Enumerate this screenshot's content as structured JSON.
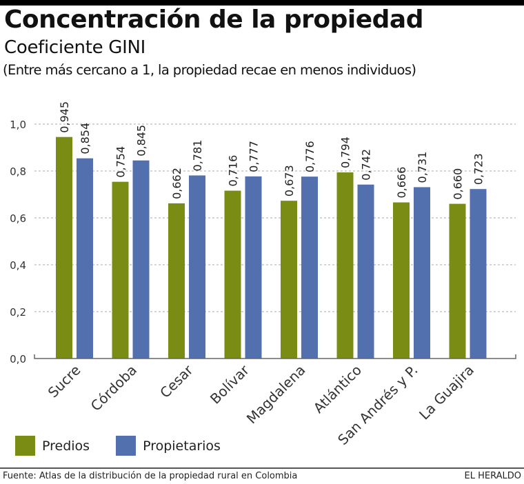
{
  "header": {
    "title": "Concentración de la propiedad",
    "subtitle": "Coeficiente GINI",
    "note": "(Entre más cercano a 1, la propiedad recae en menos individuos)"
  },
  "legend": [
    {
      "label": "Predios",
      "color": "#7a8c14"
    },
    {
      "label": "Propietarios",
      "color": "#5270ad"
    }
  ],
  "footer": {
    "source": "Fuente: Atlas de la distribución de la propiedad rural en Colombia",
    "brand": "EL HERALDO"
  },
  "chart_data": {
    "type": "bar",
    "title": "Concentración de la propiedad",
    "subtitle": "Coeficiente GINI",
    "xlabel": "",
    "ylabel": "",
    "ylim": [
      0,
      1.0
    ],
    "yticks": [
      0.0,
      0.2,
      0.4,
      0.6,
      0.8,
      1.0
    ],
    "ytick_labels": [
      "0,0",
      "0,2",
      "0,4",
      "0,6",
      "0,8",
      "1,0"
    ],
    "grid": true,
    "legend_position": "bottom-left",
    "categories": [
      "Sucre",
      "Córdoba",
      "Cesar",
      "Bolívar",
      "Magdalena",
      "Atlántico",
      "San Andrés y P.",
      "La Guajira"
    ],
    "series": [
      {
        "name": "Predios",
        "color": "#7a8c14",
        "values": [
          0.945,
          0.754,
          0.662,
          0.716,
          0.673,
          0.794,
          0.666,
          0.66
        ],
        "labels": [
          "0,945",
          "0,754",
          "0,662",
          "0,716",
          "0,673",
          "0,794",
          "0,666",
          "0,660"
        ]
      },
      {
        "name": "Propietarios",
        "color": "#5270ad",
        "values": [
          0.854,
          0.845,
          0.781,
          0.777,
          0.776,
          0.742,
          0.731,
          0.723
        ],
        "labels": [
          "0,854",
          "0,845",
          "0,781",
          "0,777",
          "0,776",
          "0,742",
          "0,731",
          "0,723"
        ]
      }
    ]
  }
}
